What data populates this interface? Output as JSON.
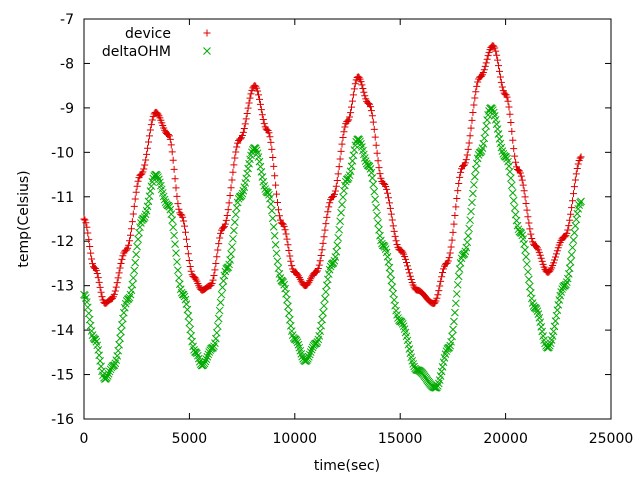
{
  "chart_data": {
    "type": "scatter",
    "title": "",
    "xlabel": "time(sec)",
    "ylabel": "temp(Celsius)",
    "xlim": [
      0,
      25000
    ],
    "ylim": [
      -16,
      -7
    ],
    "x_ticks": [
      0,
      5000,
      10000,
      15000,
      20000,
      25000
    ],
    "y_ticks": [
      -16,
      -15,
      -14,
      -13,
      -12,
      -11,
      -10,
      -9,
      -8,
      -7
    ],
    "grid": false,
    "legend_position": "top-left",
    "series": [
      {
        "name": "device",
        "color": "#dd0000",
        "marker": "plus",
        "points": [
          [
            0,
            -11.5
          ],
          [
            500,
            -12.6
          ],
          [
            1000,
            -13.4
          ],
          [
            1300,
            -13.3
          ],
          [
            2000,
            -12.2
          ],
          [
            2700,
            -10.5
          ],
          [
            3400,
            -9.1
          ],
          [
            4000,
            -9.6
          ],
          [
            4600,
            -11.4
          ],
          [
            5200,
            -12.8
          ],
          [
            5600,
            -13.1
          ],
          [
            6000,
            -13.0
          ],
          [
            6600,
            -11.7
          ],
          [
            7400,
            -9.7
          ],
          [
            8100,
            -8.5
          ],
          [
            8700,
            -9.5
          ],
          [
            9400,
            -11.6
          ],
          [
            10000,
            -12.7
          ],
          [
            10500,
            -13.0
          ],
          [
            11000,
            -12.7
          ],
          [
            11800,
            -11.0
          ],
          [
            12500,
            -9.3
          ],
          [
            13000,
            -8.3
          ],
          [
            13500,
            -8.9
          ],
          [
            14200,
            -10.7
          ],
          [
            15000,
            -12.2
          ],
          [
            15800,
            -13.1
          ],
          [
            16600,
            -13.4
          ],
          [
            17200,
            -12.5
          ],
          [
            18000,
            -10.3
          ],
          [
            18800,
            -8.3
          ],
          [
            19400,
            -7.6
          ],
          [
            20000,
            -8.7
          ],
          [
            20600,
            -10.4
          ],
          [
            21400,
            -12.1
          ],
          [
            22000,
            -12.7
          ],
          [
            22800,
            -11.9
          ],
          [
            23600,
            -10.1
          ]
        ]
      },
      {
        "name": "deltaOHM",
        "color": "#00aa00",
        "marker": "cross",
        "points": [
          [
            0,
            -13.2
          ],
          [
            500,
            -14.2
          ],
          [
            1000,
            -15.1
          ],
          [
            1400,
            -14.8
          ],
          [
            2100,
            -13.3
          ],
          [
            2800,
            -11.5
          ],
          [
            3400,
            -10.5
          ],
          [
            4000,
            -11.2
          ],
          [
            4700,
            -13.2
          ],
          [
            5300,
            -14.5
          ],
          [
            5600,
            -14.8
          ],
          [
            6100,
            -14.4
          ],
          [
            6800,
            -12.6
          ],
          [
            7400,
            -11.0
          ],
          [
            8100,
            -9.9
          ],
          [
            8700,
            -10.9
          ],
          [
            9400,
            -12.9
          ],
          [
            10000,
            -14.2
          ],
          [
            10500,
            -14.7
          ],
          [
            11000,
            -14.3
          ],
          [
            11800,
            -12.5
          ],
          [
            12500,
            -10.6
          ],
          [
            13000,
            -9.7
          ],
          [
            13500,
            -10.3
          ],
          [
            14200,
            -12.1
          ],
          [
            15000,
            -13.8
          ],
          [
            15800,
            -14.9
          ],
          [
            16700,
            -15.3
          ],
          [
            17300,
            -14.4
          ],
          [
            18000,
            -12.3
          ],
          [
            18800,
            -10.0
          ],
          [
            19300,
            -9.0
          ],
          [
            20000,
            -10.1
          ],
          [
            20700,
            -11.8
          ],
          [
            21400,
            -13.5
          ],
          [
            22000,
            -14.4
          ],
          [
            22800,
            -13.0
          ],
          [
            23600,
            -11.1
          ]
        ]
      }
    ]
  }
}
